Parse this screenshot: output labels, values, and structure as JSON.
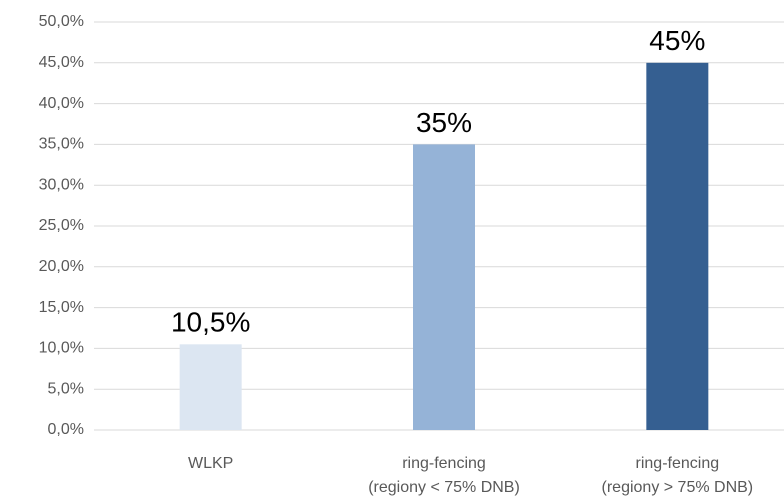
{
  "chart_data": {
    "type": "bar",
    "categories": [
      "WLKP",
      "ring-fencing\n(regiony < 75% DNB)",
      "ring-fencing\n(regiony > 75% DNB)"
    ],
    "values": [
      10.5,
      35,
      45
    ],
    "value_labels": [
      "10,5%",
      "35%",
      "45%"
    ],
    "colors": [
      "#dce6f2",
      "#95b3d7",
      "#355f91"
    ],
    "ylim": [
      0,
      50
    ],
    "yticks": [
      {
        "value": 0,
        "label": "0,0%"
      },
      {
        "value": 5,
        "label": "5,0%"
      },
      {
        "value": 10,
        "label": "10,0%"
      },
      {
        "value": 15,
        "label": "15,0%"
      },
      {
        "value": 20,
        "label": "20,0%"
      },
      {
        "value": 25,
        "label": "25,0%"
      },
      {
        "value": 30,
        "label": "30,0%"
      },
      {
        "value": 35,
        "label": "35,0%"
      },
      {
        "value": 40,
        "label": "40,0%"
      },
      {
        "value": 45,
        "label": "45,0%"
      },
      {
        "value": 50,
        "label": "50,0%"
      }
    ],
    "grid": true
  }
}
